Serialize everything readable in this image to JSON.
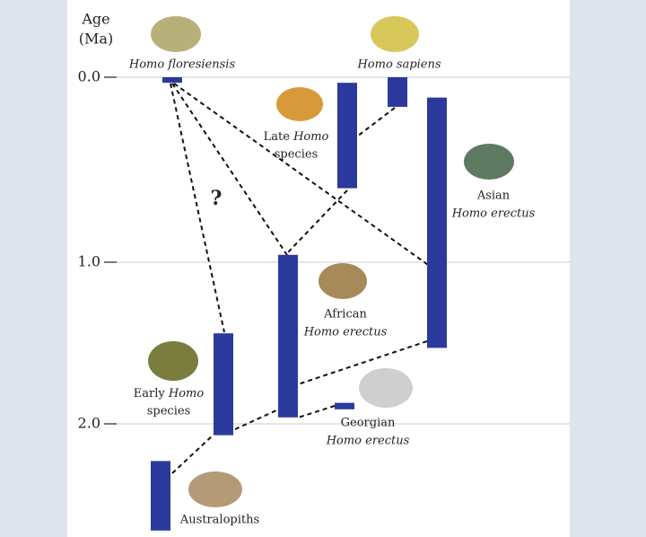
{
  "chart_data": {
    "type": "range",
    "y_label": [
      "Age",
      "(Ma)"
    ],
    "ylim": [
      0,
      2.66
    ],
    "yticks": [
      {
        "value": 0,
        "label": "0.0"
      },
      {
        "value": 1,
        "label": "1.0"
      },
      {
        "value": 2,
        "label": "2.0"
      }
    ],
    "grid": true,
    "color": "#2b3a9c",
    "annotation": "?",
    "bars": [
      {
        "label": [
          "Homo floresiensis"
        ],
        "values": [
          0.0,
          0.03
        ]
      },
      {
        "label": [
          "Homo sapiens"
        ],
        "values": [
          0.0,
          0.16
        ]
      },
      {
        "label": [
          "Late",
          "Homo",
          "species"
        ],
        "values": [
          0.03,
          0.6
        ]
      },
      {
        "label": [
          "Asian",
          "Homo erectus"
        ],
        "values": [
          0.11,
          1.53
        ]
      },
      {
        "label": [
          "African",
          "Homo erectus"
        ],
        "values": [
          0.96,
          1.96
        ]
      },
      {
        "label": [
          "Early",
          "Homo",
          "species"
        ],
        "values": [
          1.44,
          2.07
        ]
      },
      {
        "label": [
          "Georgian",
          "Homo erectus"
        ],
        "values": [
          1.87,
          1.91
        ]
      },
      {
        "label": [
          "Australopiths"
        ],
        "values": [
          2.23,
          2.66
        ]
      }
    ]
  }
}
